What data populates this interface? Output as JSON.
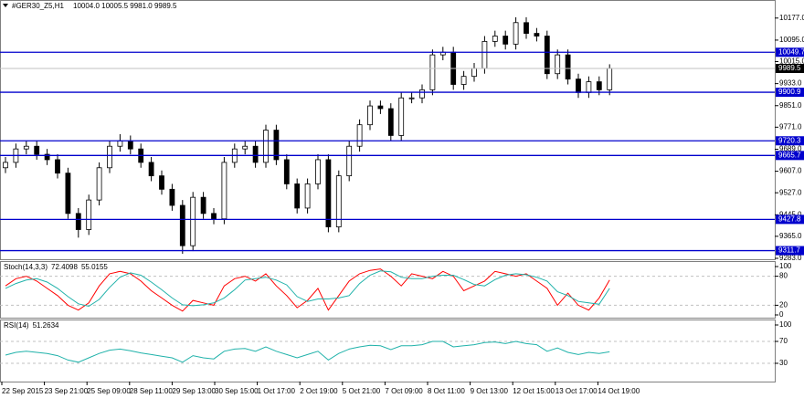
{
  "header": {
    "symbol": "#GER30_Z5,H1",
    "quote": "10004.0 10005.5 9981.0 9989.5"
  },
  "time_axis": [
    "22 Sep 2015",
    "23 Sep 21:00",
    "25 Sep 09:00",
    "28 Sep 11:00",
    "29 Sep 13:00",
    "30 Sep 15:00",
    "1 Oct 17:00",
    "2 Oct 19:00",
    "5 Oct 21:00",
    "7 Oct 09:00",
    "8 Oct 11:00",
    "9 Oct 13:00",
    "12 Oct 15:00",
    "13 Oct 17:00",
    "14 Oct 19:00"
  ],
  "chart_data": [
    {
      "type": "candlestick",
      "open": [
        9620,
        9640,
        9690,
        9700,
        9670,
        9650,
        9600,
        9450,
        9390,
        9500,
        9620,
        9700,
        9720,
        9690,
        9640,
        9590,
        9540,
        9480,
        9330,
        9510,
        9450,
        9430,
        9640,
        9690,
        9700,
        9640,
        9760,
        9650,
        9560,
        9470,
        9560,
        9650,
        9400,
        9590,
        9700,
        9780,
        9850,
        9840,
        9740,
        9880,
        9880,
        9910,
        10040,
        10050,
        9930,
        9960,
        9990,
        10090,
        10110,
        10080,
        10160,
        10120,
        10110,
        9970,
        10040,
        9950,
        9900,
        9940,
        9910
      ],
      "high": [
        9660,
        9710,
        9720,
        9720,
        9690,
        9670,
        9620,
        9470,
        9520,
        9640,
        9720,
        9745,
        9740,
        9710,
        9660,
        9610,
        9560,
        9500,
        9530,
        9530,
        9470,
        9660,
        9710,
        9720,
        9720,
        9780,
        9780,
        9670,
        9580,
        9580,
        9670,
        9670,
        9610,
        9720,
        9800,
        9870,
        9870,
        9860,
        9900,
        9900,
        9930,
        10060,
        10070,
        10070,
        9980,
        10010,
        10110,
        10130,
        10130,
        10180,
        10180,
        10140,
        10130,
        10060,
        10060,
        9970,
        9960,
        9960,
        10005
      ],
      "low": [
        9600,
        9620,
        9670,
        9650,
        9630,
        9580,
        9430,
        9360,
        9370,
        9480,
        9600,
        9680,
        9670,
        9620,
        9570,
        9520,
        9460,
        9300,
        9310,
        9430,
        9410,
        9410,
        9620,
        9670,
        9620,
        9620,
        9630,
        9540,
        9450,
        9450,
        9540,
        9380,
        9380,
        9570,
        9680,
        9760,
        9820,
        9720,
        9720,
        9860,
        9860,
        9890,
        10020,
        9910,
        9910,
        9940,
        9970,
        10070,
        10060,
        10060,
        10100,
        10090,
        9950,
        9950,
        9930,
        9880,
        9880,
        9890,
        9890
      ],
      "close": [
        9640,
        9690,
        9700,
        9670,
        9650,
        9600,
        9450,
        9390,
        9500,
        9620,
        9700,
        9720,
        9690,
        9640,
        9590,
        9540,
        9480,
        9330,
        9510,
        9450,
        9430,
        9640,
        9690,
        9700,
        9640,
        9760,
        9650,
        9560,
        9470,
        9560,
        9650,
        9400,
        9590,
        9700,
        9780,
        9850,
        9840,
        9740,
        9880,
        9880,
        9910,
        10040,
        10050,
        9930,
        9960,
        9990,
        10090,
        10110,
        10080,
        10160,
        10120,
        10110,
        9970,
        10040,
        9950,
        9900,
        9940,
        9910,
        9990
      ],
      "ylim": [
        9283,
        10234
      ],
      "yticks": [
        {
          "value": 10177,
          "label": "10177.0"
        },
        {
          "value": 10095,
          "label": "10095.0"
        },
        {
          "value": 10015,
          "label": "10015.0"
        },
        {
          "value": 9933,
          "label": "9933.0"
        },
        {
          "value": 9851,
          "label": "9851.0"
        },
        {
          "value": 9771,
          "label": "9771.0"
        },
        {
          "value": 9689,
          "label": "9689.0"
        },
        {
          "value": 9607,
          "label": "9607.0"
        },
        {
          "value": 9527,
          "label": "9527.0"
        },
        {
          "value": 9445,
          "label": "9445.0"
        },
        {
          "value": 9365,
          "label": "9365.0"
        },
        {
          "value": 9283,
          "label": "9283.0"
        }
      ],
      "levels": [
        10049.7,
        9900.9,
        9720.3,
        9665.7,
        9427.8,
        9311.7
      ],
      "level_color": "#0000cd",
      "last_price": 9989.5
    },
    {
      "type": "line",
      "title": "Stoch(14,3,3)",
      "last_values": [
        72.4098,
        55.0155
      ],
      "series": [
        {
          "color": "#ff0000",
          "values": [
            60,
            75,
            80,
            70,
            55,
            40,
            20,
            10,
            25,
            60,
            85,
            90,
            85,
            70,
            50,
            35,
            20,
            8,
            30,
            25,
            20,
            60,
            75,
            80,
            70,
            85,
            60,
            40,
            15,
            30,
            55,
            10,
            40,
            70,
            85,
            92,
            95,
            80,
            60,
            85,
            80,
            75,
            90,
            80,
            50,
            60,
            70,
            90,
            85,
            80,
            85,
            70,
            55,
            20,
            45,
            20,
            10,
            35,
            72
          ]
        },
        {
          "color": "#20b2aa",
          "values": [
            55,
            65,
            72,
            75,
            68,
            55,
            38,
            23,
            18,
            32,
            57,
            78,
            87,
            82,
            68,
            52,
            35,
            21,
            19,
            21,
            25,
            35,
            52,
            72,
            75,
            78,
            72,
            62,
            38,
            28,
            33,
            33,
            35,
            40,
            65,
            82,
            91,
            89,
            78,
            75,
            75,
            80,
            82,
            82,
            73,
            63,
            60,
            73,
            82,
            85,
            83,
            78,
            70,
            48,
            40,
            28,
            25,
            22,
            55
          ]
        }
      ],
      "ylim": [
        0,
        100
      ],
      "yticks": [
        100,
        80,
        20,
        0
      ],
      "levels": [
        80,
        20
      ]
    },
    {
      "type": "line",
      "title": "RSI(14)",
      "last_values": [
        51.2634
      ],
      "series": [
        {
          "color": "#20b2aa",
          "values": [
            45,
            50,
            52,
            50,
            48,
            44,
            36,
            32,
            40,
            48,
            54,
            56,
            53,
            49,
            46,
            43,
            40,
            32,
            44,
            40,
            38,
            52,
            56,
            57,
            52,
            60,
            52,
            46,
            40,
            46,
            52,
            36,
            48,
            56,
            60,
            63,
            62,
            55,
            62,
            62,
            64,
            70,
            70,
            60,
            62,
            64,
            68,
            69,
            66,
            70,
            66,
            64,
            52,
            58,
            50,
            46,
            50,
            48,
            51
          ]
        }
      ],
      "ylim": [
        0,
        100
      ],
      "yticks": [
        100,
        70,
        30
      ],
      "levels": [
        70,
        30
      ]
    }
  ]
}
